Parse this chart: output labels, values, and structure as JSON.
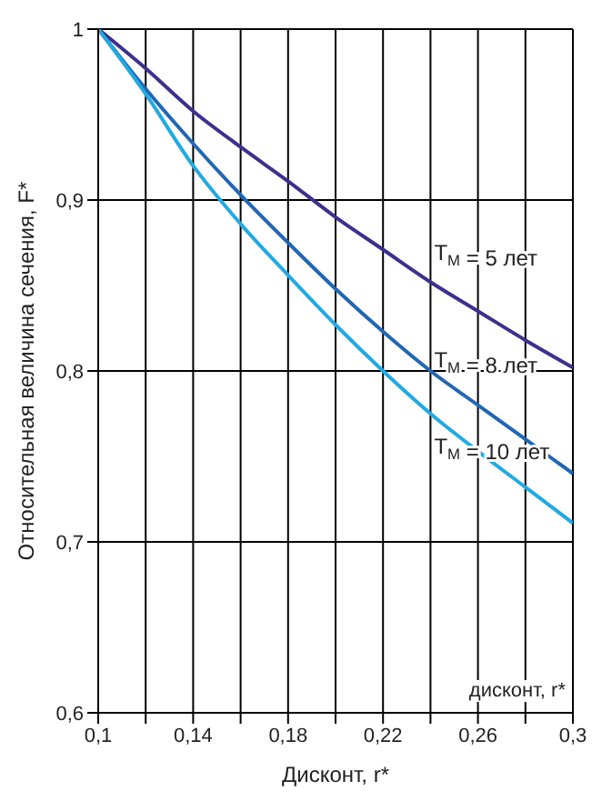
{
  "chart_data": {
    "type": "line",
    "xlabel": "Дисконт, r*",
    "ylabel": "Относительная величина сечения, F*",
    "x": [
      0.1,
      0.12,
      0.14,
      0.16,
      0.18,
      0.2,
      0.22,
      0.24,
      0.26,
      0.28,
      0.3
    ],
    "series": [
      {
        "name": "T$_{М}$ = 5 лет",
        "color": "#3b318c",
        "values": [
          1,
          0.977,
          0.952,
          0.931,
          0.911,
          0.89,
          0.871,
          0.852,
          0.835,
          0.818,
          0.802
        ]
      },
      {
        "name": "T$_{М}$ = 8 лет",
        "color": "#2266b2",
        "values": [
          1,
          0.965,
          0.933,
          0.903,
          0.875,
          0.848,
          0.823,
          0.8,
          0.78,
          0.76,
          0.74
        ]
      },
      {
        "name": "T$_{М}$ = 10 лет",
        "color": "#22a9e1",
        "values": [
          1,
          0.962,
          0.92,
          0.886,
          0.856,
          0.827,
          0.8,
          0.775,
          0.753,
          0.732,
          0.711
        ]
      }
    ],
    "xlim": [
      0.1,
      0.3
    ],
    "xticks": [
      {
        "value": 0.1,
        "label": "0,1"
      },
      {
        "value": 0.12,
        "label": null
      },
      {
        "value": 0.14,
        "label": "0,14"
      },
      {
        "value": 0.16,
        "label": null
      },
      {
        "value": 0.18,
        "label": "0,18"
      },
      {
        "value": 0.2,
        "label": null
      },
      {
        "value": 0.22,
        "label": "0,22"
      },
      {
        "value": 0.24,
        "label": null
      },
      {
        "value": 0.26,
        "label": "0,26"
      },
      {
        "value": 0.28,
        "label": null
      },
      {
        "value": 0.3,
        "label": "0,3"
      }
    ],
    "ylim": [
      0.6,
      1
    ],
    "yticks": [
      {
        "value": 0.6,
        "label": "0,6"
      },
      {
        "value": 0.7,
        "label": "0,7"
      },
      {
        "value": 0.8,
        "label": "0,8"
      },
      {
        "value": 0.9,
        "label": "0,9"
      },
      1
    ],
    "annotations": [
      "дисконт, r*"
    ],
    "grid": true,
    "legend": false,
    "marker": "none",
    "line_style": "solid"
  }
}
